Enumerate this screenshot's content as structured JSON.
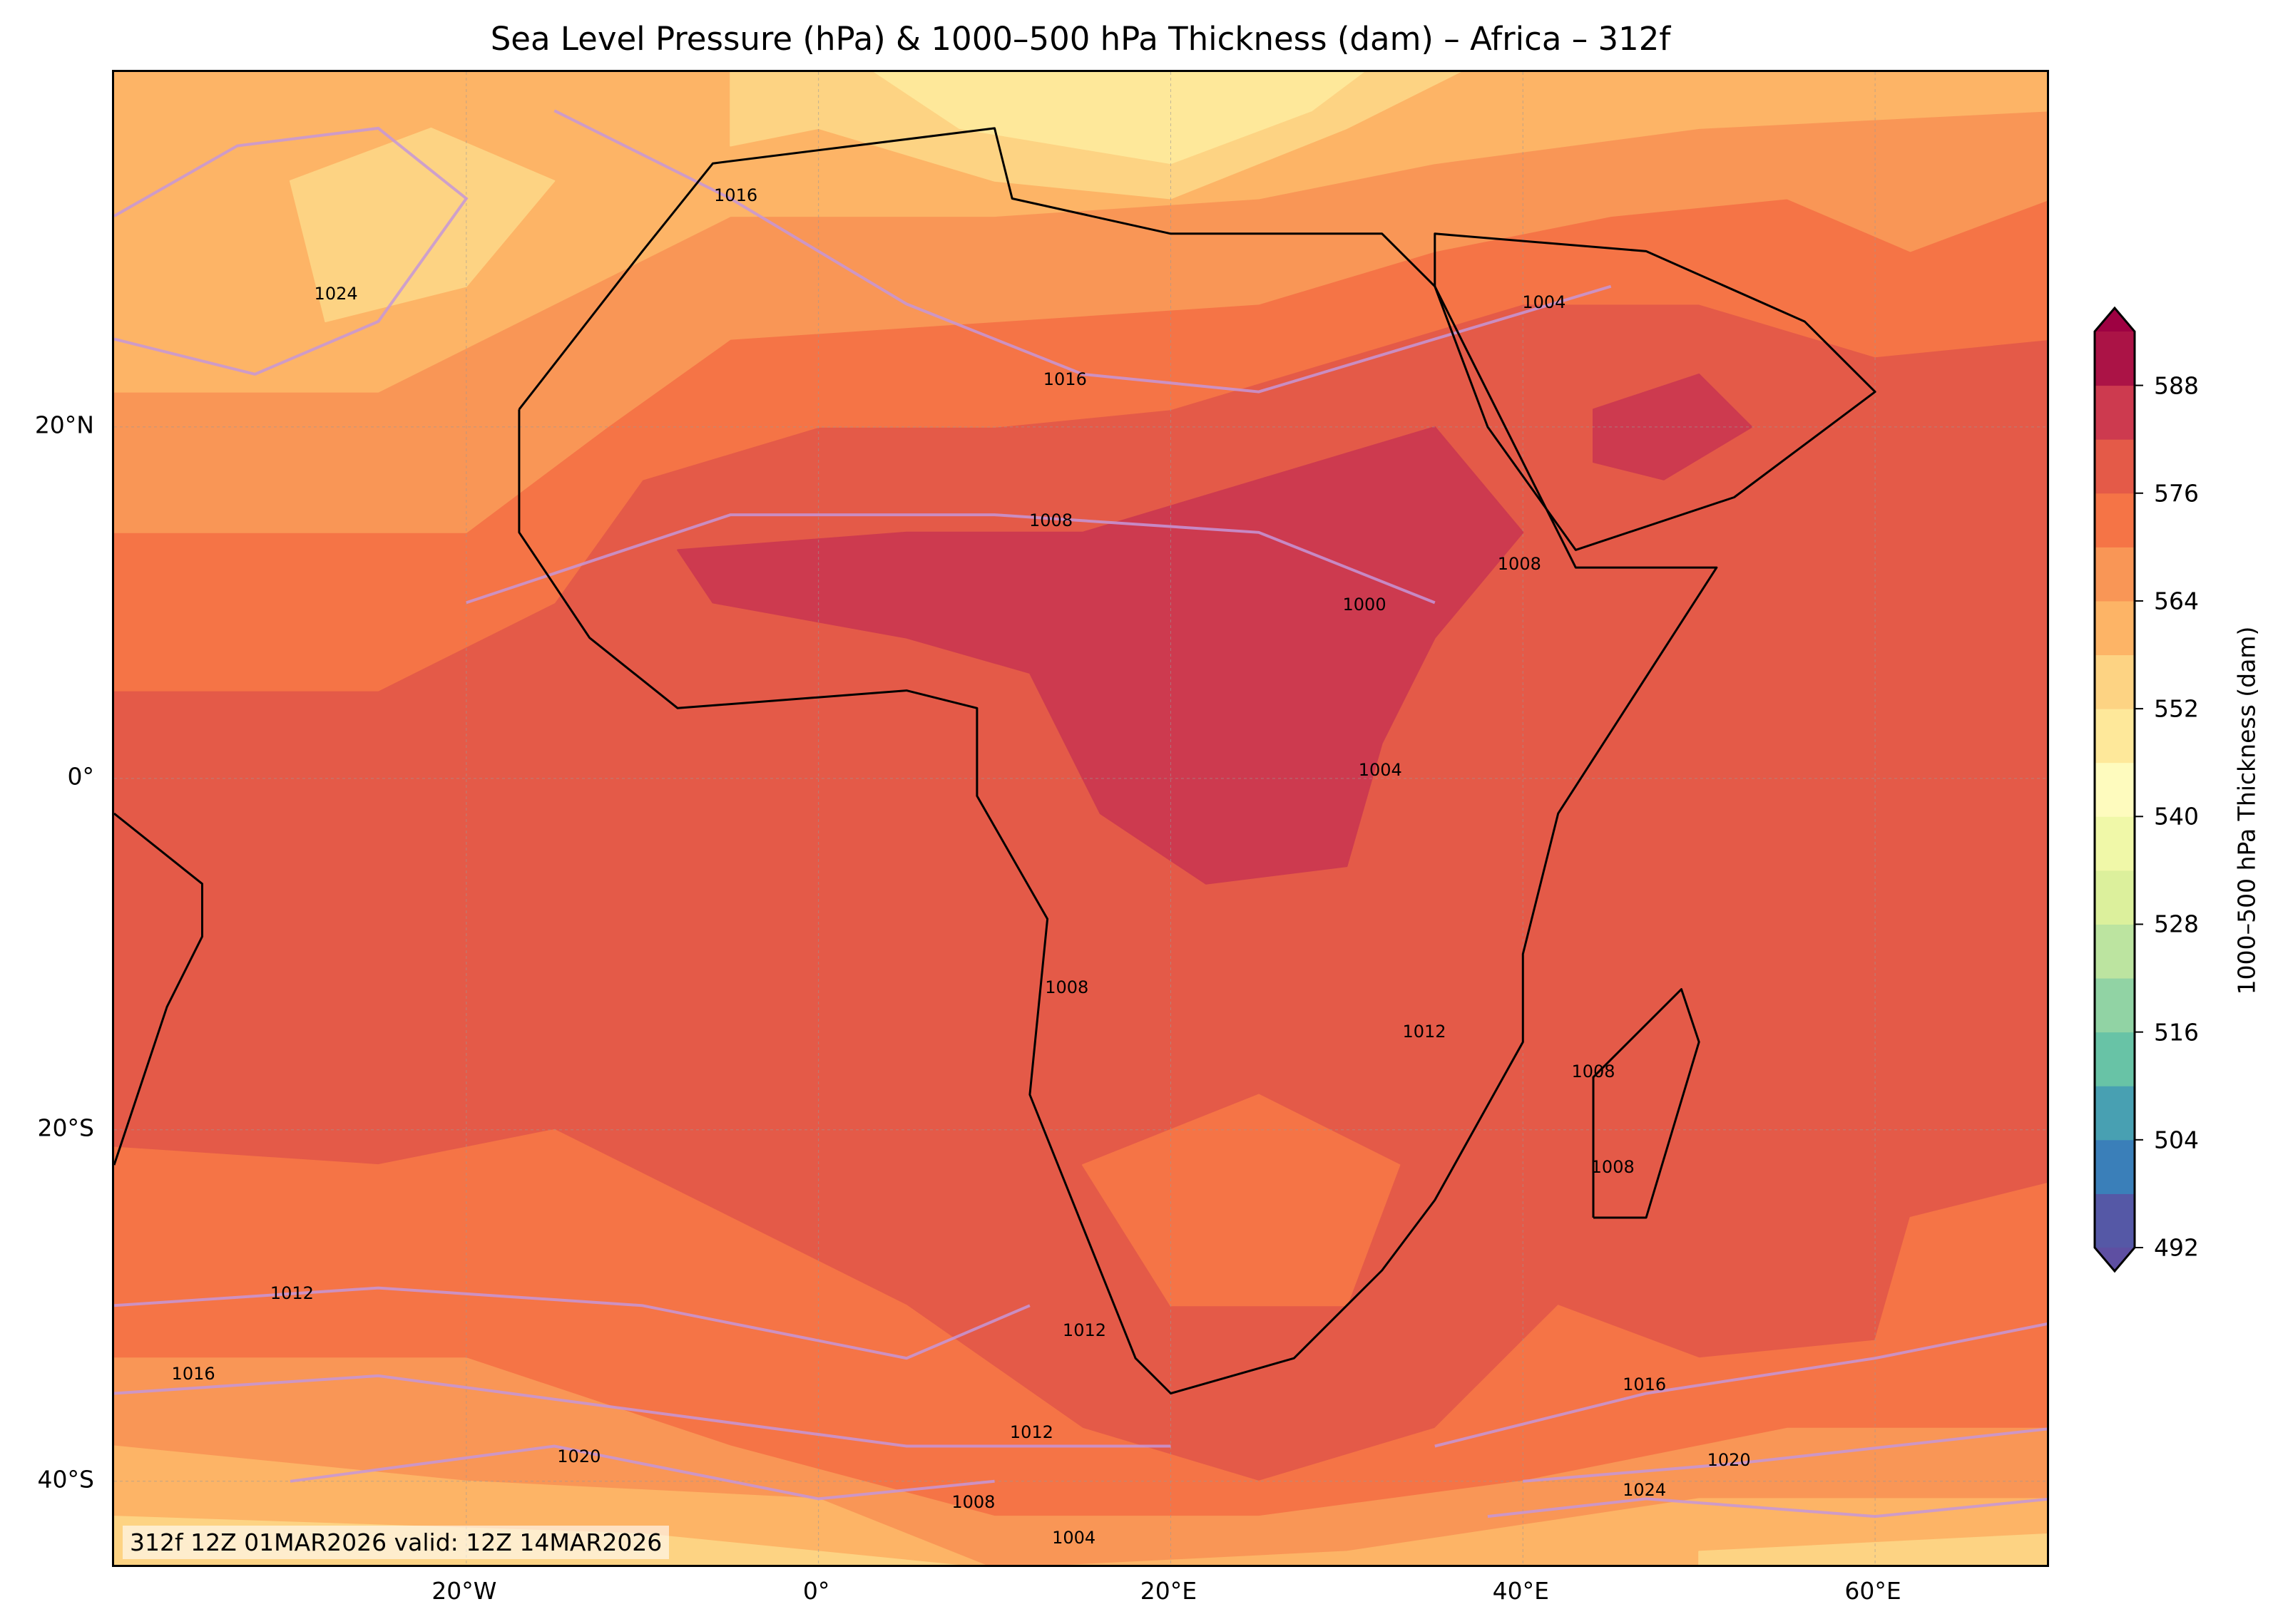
{
  "title": "Sea Level Pressure (hPa) & 1000–500 hPa Thickness (dam) – Africa – 312f",
  "map": {
    "extent": {
      "lon": [
        -40,
        70
      ],
      "lat": [
        -45,
        40.2
      ]
    },
    "x_ticks": [
      {
        "lon": -20,
        "label": "20°W"
      },
      {
        "lon": 0,
        "label": "0°"
      },
      {
        "lon": 20,
        "label": "20°E"
      },
      {
        "lon": 40,
        "label": "40°E"
      },
      {
        "lon": 60,
        "label": "60°E"
      }
    ],
    "y_ticks": [
      {
        "lat": 20,
        "label": "20°N"
      },
      {
        "lat": 0,
        "label": "0°"
      },
      {
        "lat": -20,
        "label": "20°S"
      },
      {
        "lat": -40,
        "label": "40°S"
      }
    ],
    "stamp": "312f 12Z 01MAR2026 valid: 12Z 14MAR2026",
    "background_level": 576,
    "thickness_regions": [
      {
        "level": 570,
        "poly": [
          [
            -40,
            5
          ],
          [
            -25,
            5
          ],
          [
            -15,
            10
          ],
          [
            -10,
            17
          ],
          [
            0,
            20
          ],
          [
            10,
            20
          ],
          [
            20,
            21
          ],
          [
            30,
            24
          ],
          [
            40,
            27
          ],
          [
            50,
            27
          ],
          [
            60,
            24
          ],
          [
            70,
            25
          ],
          [
            70,
            41
          ],
          [
            -40,
            41
          ]
        ]
      },
      {
        "level": 564,
        "poly": [
          [
            -40,
            14
          ],
          [
            -20,
            14
          ],
          [
            -12,
            20
          ],
          [
            -5,
            25
          ],
          [
            10,
            26
          ],
          [
            25,
            27
          ],
          [
            35,
            30
          ],
          [
            45,
            32
          ],
          [
            55,
            33
          ],
          [
            62,
            30
          ],
          [
            70,
            33
          ],
          [
            70,
            41
          ],
          [
            -40,
            41
          ]
        ]
      },
      {
        "level": 558,
        "poly": [
          [
            -40,
            22
          ],
          [
            -25,
            22
          ],
          [
            -15,
            27
          ],
          [
            -5,
            32
          ],
          [
            10,
            32
          ],
          [
            25,
            33
          ],
          [
            35,
            35
          ],
          [
            50,
            37
          ],
          [
            70,
            38
          ],
          [
            70,
            41
          ],
          [
            -40,
            41
          ]
        ]
      },
      {
        "level": 552,
        "poly": [
          [
            -28,
            26
          ],
          [
            -20,
            28
          ],
          [
            -15,
            34
          ],
          [
            -22,
            37
          ],
          [
            -30,
            34
          ]
        ]
      },
      {
        "level": 552,
        "poly": [
          [
            -5,
            36
          ],
          [
            0,
            37
          ],
          [
            10,
            34
          ],
          [
            20,
            33
          ],
          [
            30,
            37
          ],
          [
            38,
            41
          ],
          [
            -5,
            41
          ]
        ]
      },
      {
        "level": 546,
        "poly": [
          [
            2,
            41
          ],
          [
            8,
            37
          ],
          [
            20,
            35
          ],
          [
            28,
            38
          ],
          [
            32,
            41
          ]
        ]
      },
      {
        "level": 582,
        "poly": [
          [
            -8,
            13
          ],
          [
            5,
            14
          ],
          [
            15,
            14
          ],
          [
            25,
            17
          ],
          [
            35,
            20
          ],
          [
            40,
            14
          ],
          [
            35,
            8
          ],
          [
            32,
            2
          ],
          [
            30,
            -5
          ],
          [
            22,
            -6
          ],
          [
            16,
            -2
          ],
          [
            12,
            6
          ],
          [
            5,
            8
          ],
          [
            -6,
            10
          ]
        ]
      },
      {
        "level": 582,
        "poly": [
          [
            44,
            21
          ],
          [
            50,
            23
          ],
          [
            53,
            20
          ],
          [
            48,
            17
          ],
          [
            44,
            18
          ]
        ]
      },
      {
        "level": 570,
        "poly": [
          [
            -40,
            -21
          ],
          [
            -25,
            -22
          ],
          [
            -15,
            -20
          ],
          [
            -5,
            -25
          ],
          [
            5,
            -30
          ],
          [
            15,
            -37
          ],
          [
            25,
            -40
          ],
          [
            35,
            -37
          ],
          [
            42,
            -30
          ],
          [
            50,
            -33
          ],
          [
            60,
            -32
          ],
          [
            62,
            -25
          ],
          [
            70,
            -23
          ],
          [
            70,
            -46
          ],
          [
            -40,
            -46
          ]
        ]
      },
      {
        "level": 570,
        "poly": [
          [
            15,
            -22
          ],
          [
            25,
            -18
          ],
          [
            33,
            -22
          ],
          [
            30,
            -30
          ],
          [
            20,
            -30
          ]
        ]
      },
      {
        "level": 564,
        "poly": [
          [
            -40,
            -33
          ],
          [
            -20,
            -33
          ],
          [
            -5,
            -38
          ],
          [
            10,
            -42
          ],
          [
            25,
            -42
          ],
          [
            40,
            -40
          ],
          [
            55,
            -37
          ],
          [
            70,
            -37
          ],
          [
            70,
            -46
          ],
          [
            -40,
            -46
          ]
        ]
      },
      {
        "level": 558,
        "poly": [
          [
            -40,
            -38
          ],
          [
            -20,
            -40
          ],
          [
            0,
            -41
          ],
          [
            10,
            -45
          ],
          [
            30,
            -44
          ],
          [
            50,
            -41
          ],
          [
            70,
            -41
          ],
          [
            70,
            -46
          ],
          [
            -40,
            -46
          ]
        ]
      },
      {
        "level": 552,
        "poly": [
          [
            -40,
            -42
          ],
          [
            -10,
            -43
          ],
          [
            0,
            -44
          ],
          [
            20,
            -46
          ],
          [
            -40,
            -46
          ]
        ]
      },
      {
        "level": 552,
        "poly": [
          [
            50,
            -44
          ],
          [
            70,
            -43
          ],
          [
            70,
            -46
          ],
          [
            50,
            -46
          ]
        ]
      }
    ],
    "coastlines": [
      [
        [
          -17,
          21
        ],
        [
          -10,
          30
        ],
        [
          -6,
          35
        ],
        [
          10,
          37
        ],
        [
          11,
          33
        ],
        [
          20,
          31
        ],
        [
          32,
          31
        ],
        [
          35,
          28
        ],
        [
          43,
          12
        ],
        [
          51,
          12
        ],
        [
          42,
          -2
        ],
        [
          40,
          -10
        ],
        [
          40,
          -15
        ],
        [
          35,
          -24
        ],
        [
          32,
          -28
        ],
        [
          27,
          -33
        ],
        [
          20,
          -35
        ],
        [
          18,
          -33
        ],
        [
          12,
          -18
        ],
        [
          13,
          -8
        ],
        [
          9,
          -1
        ],
        [
          9,
          4
        ],
        [
          5,
          5
        ],
        [
          -8,
          4
        ],
        [
          -13,
          8
        ],
        [
          -17,
          14
        ],
        [
          -17,
          21
        ]
      ],
      [
        [
          35,
          28
        ],
        [
          35,
          31
        ],
        [
          47,
          30
        ],
        [
          56,
          26
        ],
        [
          60,
          22
        ],
        [
          52,
          16
        ],
        [
          43,
          13
        ],
        [
          38,
          20
        ],
        [
          35,
          28
        ]
      ],
      [
        [
          44,
          -25
        ],
        [
          47,
          -25
        ],
        [
          50,
          -15
        ],
        [
          49,
          -12
        ],
        [
          44,
          -17
        ],
        [
          44,
          -25
        ]
      ],
      [
        [
          -40,
          -2
        ],
        [
          -35,
          -6
        ],
        [
          -35,
          -9
        ],
        [
          -37,
          -13
        ],
        [
          -40,
          -22
        ]
      ]
    ],
    "pressure_labels": [
      {
        "text": "1016",
        "lon": -4.7,
        "lat": 33.2
      },
      {
        "text": "1024",
        "lon": -27.4,
        "lat": 27.6
      },
      {
        "text": "1016",
        "lon": 14,
        "lat": 22.7
      },
      {
        "text": "1004",
        "lon": 41.2,
        "lat": 27.1
      },
      {
        "text": "1008",
        "lon": 13.2,
        "lat": 14.7
      },
      {
        "text": "1008",
        "lon": 39.8,
        "lat": 12.2
      },
      {
        "text": "1000",
        "lon": 31,
        "lat": 9.9
      },
      {
        "text": "1004",
        "lon": 31.9,
        "lat": 0.5
      },
      {
        "text": "1008",
        "lon": 14.1,
        "lat": -11.9
      },
      {
        "text": "1012",
        "lon": 34.4,
        "lat": -14.4
      },
      {
        "text": "1008",
        "lon": 44,
        "lat": -16.7
      },
      {
        "text": "1008",
        "lon": 45.1,
        "lat": -22.1
      },
      {
        "text": "1012",
        "lon": -29.9,
        "lat": -29.3
      },
      {
        "text": "1016",
        "lon": -35.5,
        "lat": -33.9
      },
      {
        "text": "1012",
        "lon": 15.1,
        "lat": -31.4
      },
      {
        "text": "1016",
        "lon": 46.9,
        "lat": -34.5
      },
      {
        "text": "1012",
        "lon": 12.1,
        "lat": -37.2
      },
      {
        "text": "1020",
        "lon": -13.6,
        "lat": -38.6
      },
      {
        "text": "1020",
        "lon": 51.7,
        "lat": -38.8
      },
      {
        "text": "1024",
        "lon": 46.9,
        "lat": -40.5
      },
      {
        "text": "1008",
        "lon": 8.8,
        "lat": -41.2
      },
      {
        "text": "1004",
        "lon": 14.5,
        "lat": -43.2
      }
    ],
    "pressure_lines": [
      [
        [
          -40,
          32
        ],
        [
          -33,
          36
        ],
        [
          -25,
          37
        ],
        [
          -20,
          33
        ],
        [
          -25,
          26
        ],
        [
          -32,
          23
        ],
        [
          -40,
          25
        ]
      ],
      [
        [
          -15,
          38
        ],
        [
          -5,
          33
        ],
        [
          5,
          27
        ],
        [
          15,
          23
        ],
        [
          25,
          22
        ],
        [
          35,
          25
        ],
        [
          45,
          28
        ]
      ],
      [
        [
          -20,
          10
        ],
        [
          -5,
          15
        ],
        [
          10,
          15
        ],
        [
          25,
          14
        ],
        [
          35,
          10
        ]
      ],
      [
        [
          -40,
          -30
        ],
        [
          -25,
          -29
        ],
        [
          -10,
          -30
        ],
        [
          5,
          -33
        ],
        [
          12,
          -30
        ]
      ],
      [
        [
          -40,
          -35
        ],
        [
          -25,
          -34
        ],
        [
          -10,
          -36
        ],
        [
          5,
          -38
        ],
        [
          20,
          -38
        ]
      ],
      [
        [
          -30,
          -40
        ],
        [
          -15,
          -38
        ],
        [
          0,
          -41
        ],
        [
          10,
          -40
        ]
      ],
      [
        [
          35,
          -38
        ],
        [
          47,
          -35
        ],
        [
          60,
          -33
        ],
        [
          70,
          -31
        ]
      ],
      [
        [
          40,
          -40
        ],
        [
          52,
          -39
        ],
        [
          70,
          -37
        ]
      ],
      [
        [
          38,
          -42
        ],
        [
          47,
          -41
        ],
        [
          60,
          -42
        ],
        [
          70,
          -41
        ]
      ]
    ]
  },
  "colorbar": {
    "label": "1000–500 hPa Thickness (dam)",
    "levels": [
      492,
      498,
      504,
      510,
      516,
      522,
      528,
      534,
      540,
      546,
      552,
      558,
      564,
      570,
      576,
      582,
      588,
      594
    ],
    "colors": [
      "#5558a6",
      "#3a7fb9",
      "#48a0b2",
      "#68c3a6",
      "#91d3a4",
      "#bce4a0",
      "#dcf09c",
      "#f0f8a8",
      "#fefbbe",
      "#fee89a",
      "#fdd383",
      "#fdb466",
      "#f99656",
      "#f57446",
      "#e45a48",
      "#cd3a4f",
      "#ab1346"
    ],
    "extend_low_color": "#5e4fa2",
    "extend_high_color": "#9e0142",
    "ticks": [
      "492",
      "504",
      "516",
      "528",
      "540",
      "552",
      "564",
      "576",
      "588"
    ]
  }
}
